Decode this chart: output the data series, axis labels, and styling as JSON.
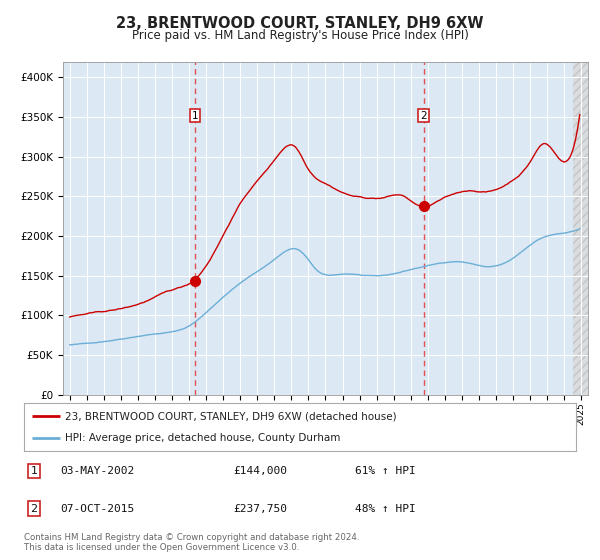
{
  "title": "23, BRENTWOOD COURT, STANLEY, DH9 6XW",
  "subtitle": "Price paid vs. HM Land Registry's House Price Index (HPI)",
  "legend_line1": "23, BRENTWOOD COURT, STANLEY, DH9 6XW (detached house)",
  "legend_line2": "HPI: Average price, detached house, County Durham",
  "transaction1_date": "03-MAY-2002",
  "transaction1_price": 144000,
  "transaction1_hpi": "61% ↑ HPI",
  "transaction2_date": "07-OCT-2015",
  "transaction2_price": 237750,
  "transaction2_hpi": "48% ↑ HPI",
  "footnote1": "Contains HM Land Registry data © Crown copyright and database right 2024.",
  "footnote2": "This data is licensed under the Open Government Licence v3.0.",
  "hpi_color": "#6baed6",
  "property_color": "#cc0000",
  "dot_color": "#cc0000",
  "plot_bg": "#dce9f5",
  "grid_color": "#ffffff",
  "dashed_line_color": "#e05050",
  "ytick_labels": [
    "£0",
    "£50K",
    "£100K",
    "£150K",
    "£200K",
    "£250K",
    "£300K",
    "£350K",
    "£400K"
  ],
  "yticks": [
    0,
    50000,
    100000,
    150000,
    200000,
    250000,
    300000,
    350000,
    400000
  ],
  "ylim": [
    0,
    420000
  ],
  "xlim_lo": 1994.6,
  "xlim_hi": 2025.4
}
